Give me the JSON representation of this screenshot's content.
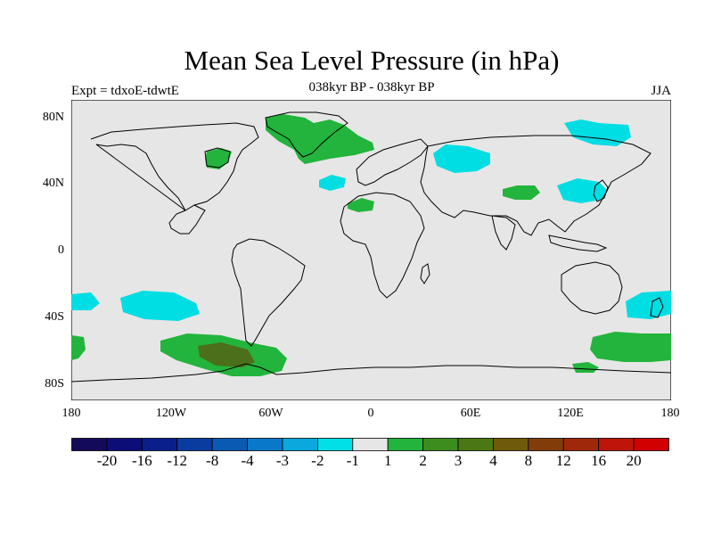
{
  "title": "Mean Sea Level Pressure (in hPa)",
  "subtitle": "038kyr BP - 038kyr BP",
  "left_label": "Expt = tdxoE-tdwtE",
  "season": "JJA",
  "axes": {
    "lat_ticks": [
      "80N",
      "40N",
      "0",
      "40S",
      "80S"
    ],
    "lon_ticks": [
      "180",
      "120W",
      "60W",
      "0",
      "60E",
      "120E",
      "180"
    ]
  },
  "colorbar": {
    "labels": [
      "-20",
      "-16",
      "-12",
      "-8",
      "-4",
      "-3",
      "-2",
      "-1",
      "1",
      "2",
      "3",
      "4",
      "8",
      "12",
      "16",
      "20"
    ],
    "colors": [
      "#140a5a",
      "#0d0d78",
      "#0a1e8c",
      "#0a3ca0",
      "#0a5ab4",
      "#0a78c8",
      "#0aa8dc",
      "#00e0e6",
      "#e6e6e6",
      "#22b43c",
      "#3c8c1e",
      "#4b7814",
      "#6e5a0a",
      "#823c0a",
      "#a0280a",
      "#be140a",
      "#d20000"
    ]
  },
  "colors": {
    "neutral": "#e6e6e6",
    "cyan": "#00dde3",
    "green": "#22b43c",
    "olive": "#4b6f1a",
    "brown": "#6e5a14"
  }
}
